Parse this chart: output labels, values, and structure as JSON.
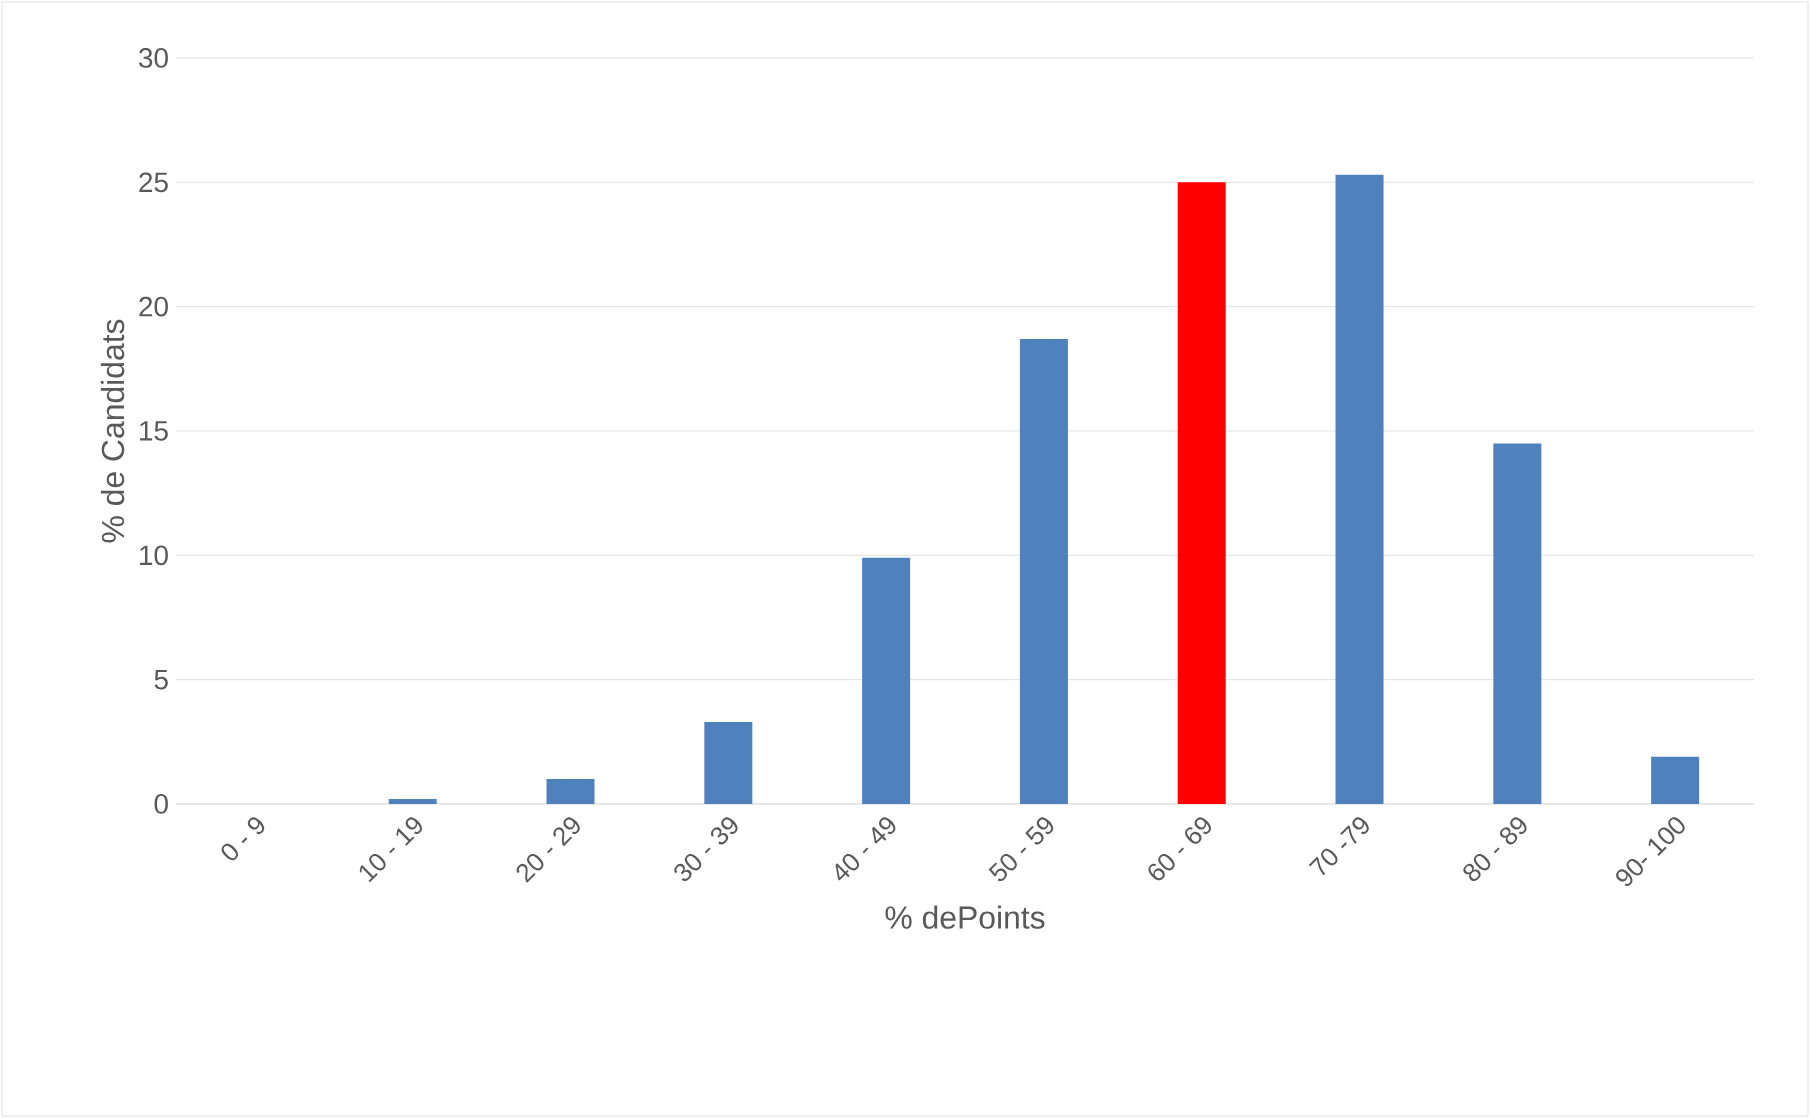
{
  "chart_data": {
    "type": "bar",
    "categories": [
      "0 - 9",
      "10 - 19",
      "20 - 29",
      "30 - 39",
      "40 - 49",
      "50 - 59",
      "60 - 69",
      "70 -79",
      "80 - 89",
      "90- 100"
    ],
    "values": [
      0,
      0.2,
      1.0,
      3.3,
      9.9,
      18.7,
      25.0,
      25.3,
      14.5,
      1.9
    ],
    "colors": [
      "#4f81bd",
      "#4f81bd",
      "#4f81bd",
      "#4f81bd",
      "#4f81bd",
      "#4f81bd",
      "#ff0000",
      "#4f81bd",
      "#4f81bd",
      "#4f81bd"
    ],
    "xlabel": "% dePoints",
    "ylabel": "% de Candidats",
    "ylim": [
      0,
      30
    ],
    "yticks": [
      0,
      5,
      10,
      15,
      20,
      25,
      30
    ],
    "grid": "y"
  }
}
